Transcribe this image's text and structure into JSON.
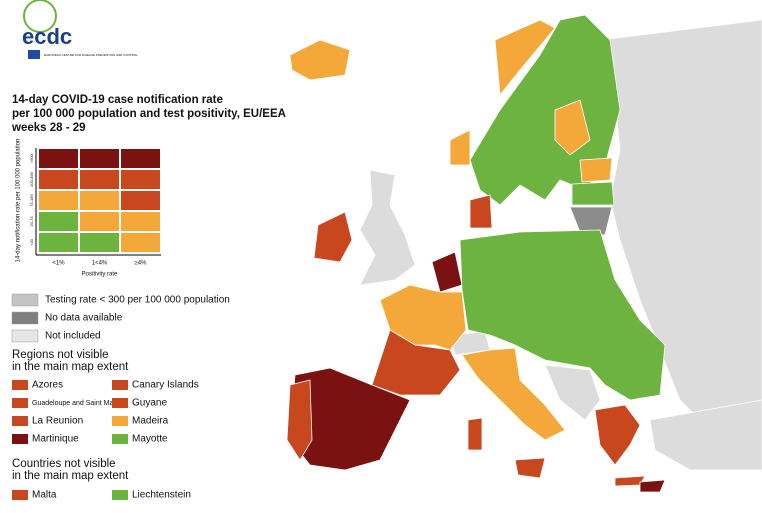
{
  "header": {
    "logo": "ecdc",
    "agency": "EUROPEAN CENTRE FOR DISEASE PREVENTION AND CONTROL"
  },
  "title": [
    "14-day COVID-19 case notification rate",
    "per 100 000 population and test positivity, EU/EEA",
    "weeks 28 - 29"
  ],
  "matrix": {
    "y_label": "14-day notification rate per 100 000 population",
    "y_ticks": [
      ">500",
      "200-499",
      "75-199",
      "20-74",
      "<20"
    ],
    "x_ticks": [
      "<1%",
      "1<4%",
      "≥4%"
    ],
    "x_label": "Positivity rate"
  },
  "legend": [
    "Testing rate < 300 per 100 000 population",
    "No data available",
    "Not included"
  ],
  "regions_heading": [
    "Regions not visible",
    "in the main map extent"
  ],
  "regions": [
    "Azores",
    "Canary Islands",
    "Guadeloupe and Saint Martin",
    "Guyane",
    "La Reunion",
    "Madeira",
    "Martinique",
    "Mayotte"
  ],
  "countries_heading": [
    "Countries not visible",
    "in the main map extent"
  ],
  "countries": [
    "Malta",
    "Liechtenstein"
  ]
}
